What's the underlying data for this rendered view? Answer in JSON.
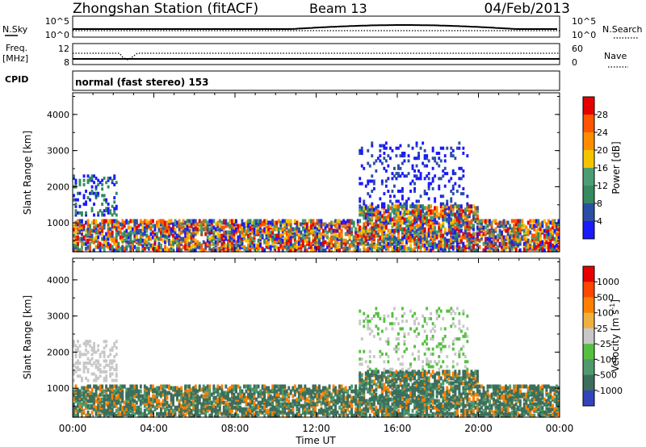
{
  "header": {
    "station": "Zhongshan Station (fitACF)",
    "beam": "Beam 13",
    "date": "04/Feb/2013"
  },
  "strips": {
    "nsky_label": "N.Sky",
    "nsearch_label": "N.Search",
    "freq_label_1": "Freq.",
    "freq_label_2": "[MHz]",
    "nave_label": "Nave",
    "cpid_label": "CPID",
    "cpid_text": "normal (fast stereo) 153",
    "noise_ticks_left": [
      "10^5",
      "10^0"
    ],
    "noise_ticks_right": [
      "10^5",
      "10^0"
    ],
    "freq_ticks": [
      "12",
      "8"
    ],
    "nave_ticks": [
      "60",
      "0"
    ]
  },
  "colors": {
    "power_scale": [
      "#1a1aff",
      "#2c4fa6",
      "#358a5f",
      "#4c9e72",
      "#f5c400",
      "#ff8c00",
      "#ff5500",
      "#e60000"
    ],
    "velocity_scale": [
      "#3344bb",
      "#3c6e5c",
      "#4e9a6c",
      "#55c040",
      "#c8c8c8",
      "#f0b040",
      "#ff8000",
      "#ff4500",
      "#e60000"
    ]
  },
  "chart_data": [
    {
      "type": "heatmap",
      "name": "power",
      "xlabel": "Time UT",
      "ylabel": "Slant Range [km]",
      "x_ticks": [
        "00:00",
        "04:00",
        "08:00",
        "12:00",
        "16:00",
        "20:00",
        "00:00"
      ],
      "y_ticks": [
        "1000",
        "2000",
        "3000",
        "4000"
      ],
      "ylim": [
        200,
        4600
      ],
      "colorbar_label": "Power [dB]",
      "colorbar_ticks": [
        "4",
        "8",
        "12",
        "16",
        "20",
        "24",
        "28"
      ],
      "colorbar_range": [
        0,
        32
      ]
    },
    {
      "type": "heatmap",
      "name": "velocity",
      "xlabel": "Time UT",
      "ylabel": "Slant Range [km]",
      "x_ticks": [
        "00:00",
        "04:00",
        "08:00",
        "12:00",
        "16:00",
        "20:00",
        "00:00"
      ],
      "y_ticks": [
        "1000",
        "2000",
        "3000",
        "4000"
      ],
      "ylim": [
        200,
        4600
      ],
      "colorbar_label": "Velocity [m s",
      "colorbar_label_sup": "-1",
      "colorbar_label_end": "]",
      "colorbar_ticks": [
        "1000",
        "500",
        "100",
        "25",
        "-25",
        "-100",
        "-500",
        "-1000"
      ]
    }
  ]
}
